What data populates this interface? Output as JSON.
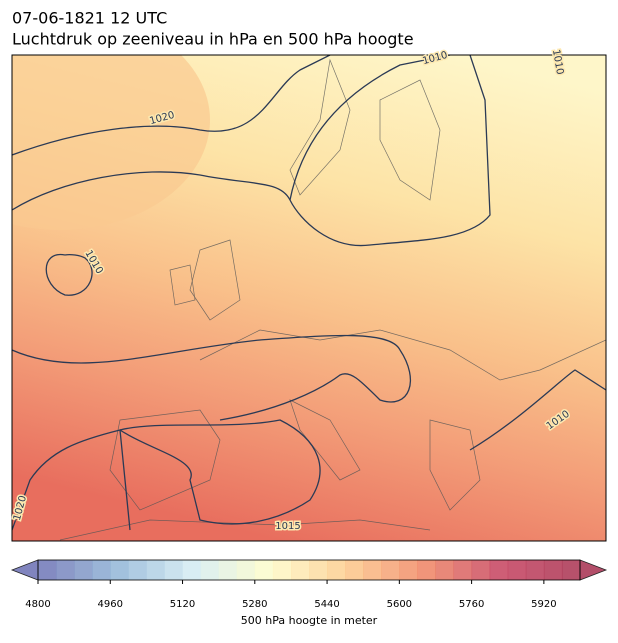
{
  "title": "07-06-1821 12 UTC",
  "subtitle": "Luchtdruk op zeeniveau in hPa en 500 hPa hoogte",
  "isobar_labels": [
    1010,
    1020,
    1010,
    1010,
    1020,
    1015,
    1010
  ],
  "colorbar": {
    "label": "500 hPa hoogte in meter",
    "lim": [
      4800,
      6000
    ],
    "step": 40,
    "ticks": [
      4800,
      4960,
      5120,
      5280,
      5440,
      5600,
      5760,
      5920
    ],
    "colors": [
      "#6b6fb3",
      "#8fb3d6",
      "#d3ebf2",
      "#fefcc8",
      "#fdc98a",
      "#ef8463",
      "#c43f5e",
      "#a6304f"
    ],
    "extend": "both"
  }
}
